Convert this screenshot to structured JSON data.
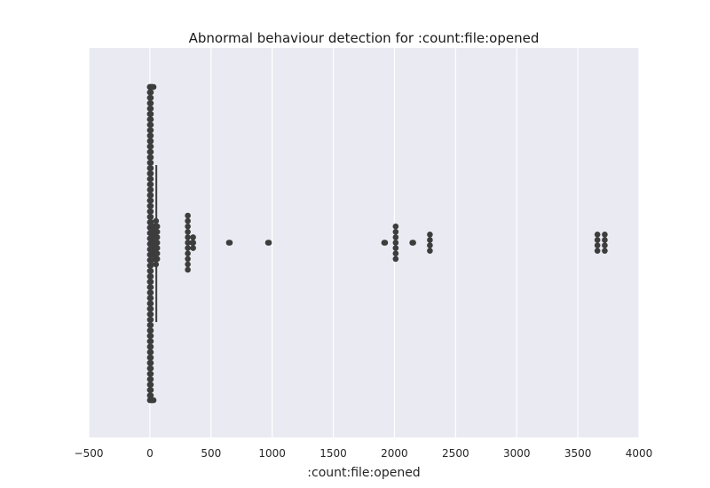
{
  "chart_data": {
    "type": "swarm",
    "title": "Abnormal behaviour detection for :count:file:opened",
    "xlabel": ":count:file:opened",
    "ylabel": "",
    "xlim": [
      -500,
      4000
    ],
    "xticks": [
      -500,
      0,
      500,
      1000,
      1500,
      2000,
      2500,
      3000,
      3500,
      4000
    ],
    "grid": true,
    "background": "#eaeaf2",
    "point_color": "#3d3d3d",
    "box": {
      "whisker_low": 0,
      "q1": 2,
      "median": 8,
      "q3": 25,
      "whisker_high": 60
    },
    "dense_cluster_range": [
      0,
      30
    ],
    "outliers": [
      {
        "value": 30,
        "count": 5
      },
      {
        "value": 40,
        "count": 7
      },
      {
        "value": 50,
        "count": 9
      },
      {
        "value": 60,
        "count": 7
      },
      {
        "value": 310,
        "count": 14
      },
      {
        "value": 350,
        "count": 2
      },
      {
        "value": 650,
        "count": 2
      },
      {
        "value": 970,
        "count": 2
      },
      {
        "value": 1920,
        "count": 2
      },
      {
        "value": 2010,
        "count": 7
      },
      {
        "value": 2150,
        "count": 2
      },
      {
        "value": 2290,
        "count": 4
      },
      {
        "value": 3660,
        "count": 4
      },
      {
        "value": 3720,
        "count": 4
      }
    ]
  }
}
